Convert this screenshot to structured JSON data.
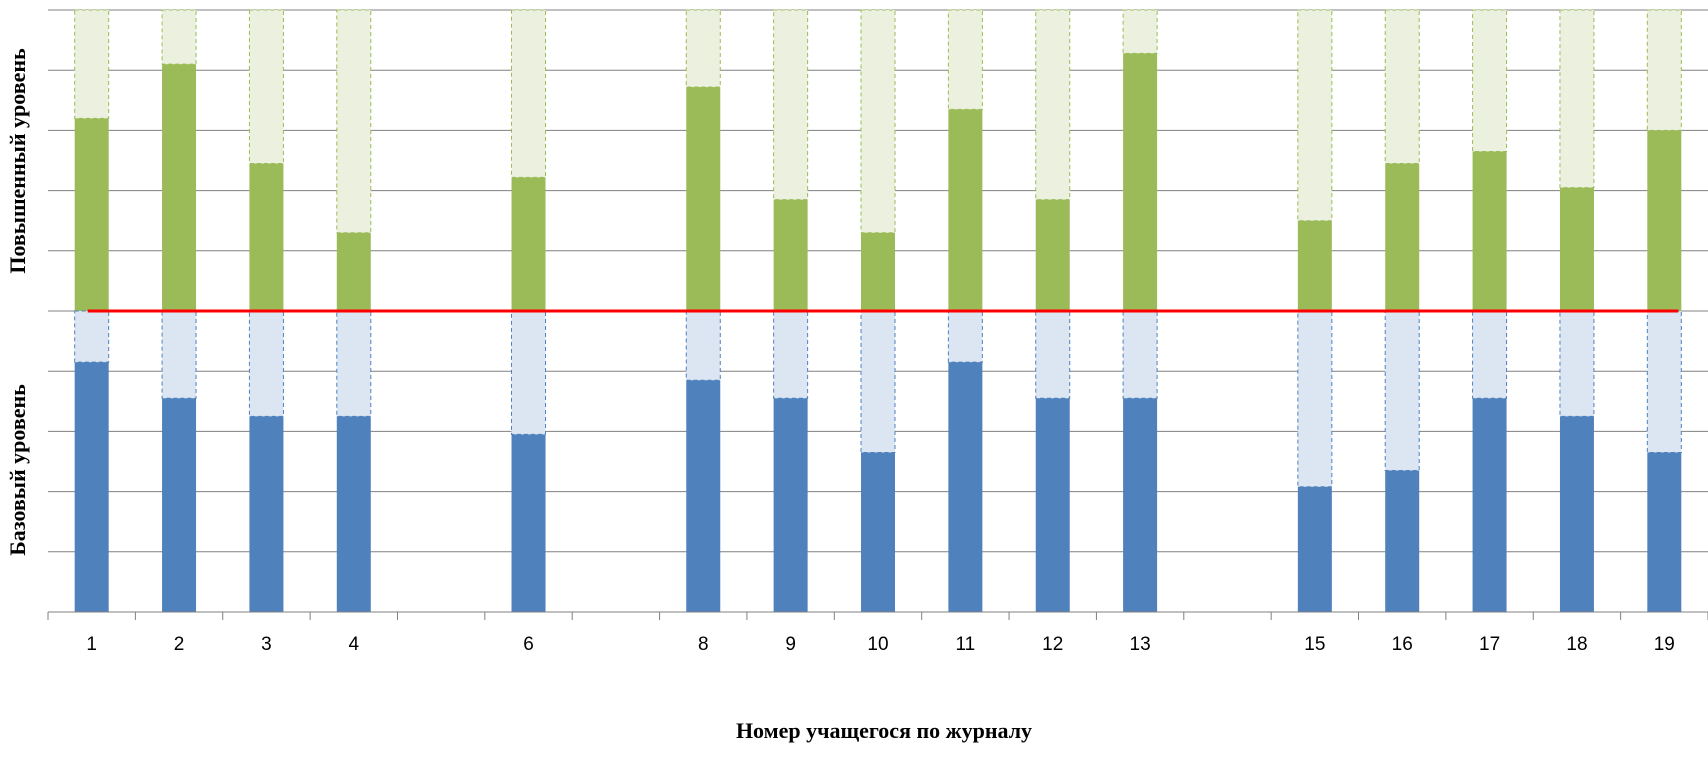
{
  "chart_data": {
    "type": "bar",
    "stacked": true,
    "grid": true,
    "legend": "none",
    "categories": [
      "1",
      "2",
      "3",
      "4",
      "",
      "6",
      "",
      "8",
      "9",
      "10",
      "11",
      "12",
      "13",
      "",
      "15",
      "16",
      "17",
      "18",
      "19"
    ],
    "xlabel": "Номер учащегося по журналу",
    "panels": [
      {
        "ylabel": "Повышенный уровень",
        "ylim": [
          0,
          5
        ],
        "series": [
          {
            "values": [
              3.2,
              4.1,
              2.45,
              1.3,
              null,
              2.22,
              null,
              3.72,
              1.85,
              1.3,
              3.35,
              1.85,
              4.28,
              null,
              1.5,
              2.45,
              2.65,
              2.05,
              3.0
            ]
          },
          {
            "values": [
              1.8,
              0.9,
              2.55,
              3.7,
              null,
              2.78,
              null,
              1.28,
              3.15,
              3.7,
              1.65,
              3.15,
              0.72,
              null,
              3.5,
              2.55,
              2.35,
              2.95,
              2.0
            ]
          }
        ],
        "colors": {
          "filled": "#9BBB59",
          "remaining": "#EBF1DE",
          "edge": "#9BBB59"
        }
      },
      {
        "ylabel": "Базовый уровень",
        "ylim": [
          0,
          5
        ],
        "series": [
          {
            "values": [
              4.15,
              3.55,
              3.25,
              3.25,
              null,
              2.95,
              null,
              3.85,
              3.55,
              2.65,
              4.15,
              3.55,
              3.55,
              null,
              2.08,
              2.35,
              3.55,
              3.25,
              2.65
            ]
          },
          {
            "values": [
              0.85,
              1.45,
              1.75,
              1.75,
              null,
              2.05,
              null,
              1.15,
              1.45,
              2.35,
              0.85,
              1.45,
              1.45,
              null,
              2.92,
              2.65,
              1.45,
              1.75,
              2.35
            ]
          }
        ],
        "colors": {
          "filled": "#4F81BD",
          "remaining": "#DCE6F2",
          "edge": "#4F81BD"
        }
      }
    ],
    "divider_color": "#FF0000",
    "grid_color": "#808080"
  }
}
